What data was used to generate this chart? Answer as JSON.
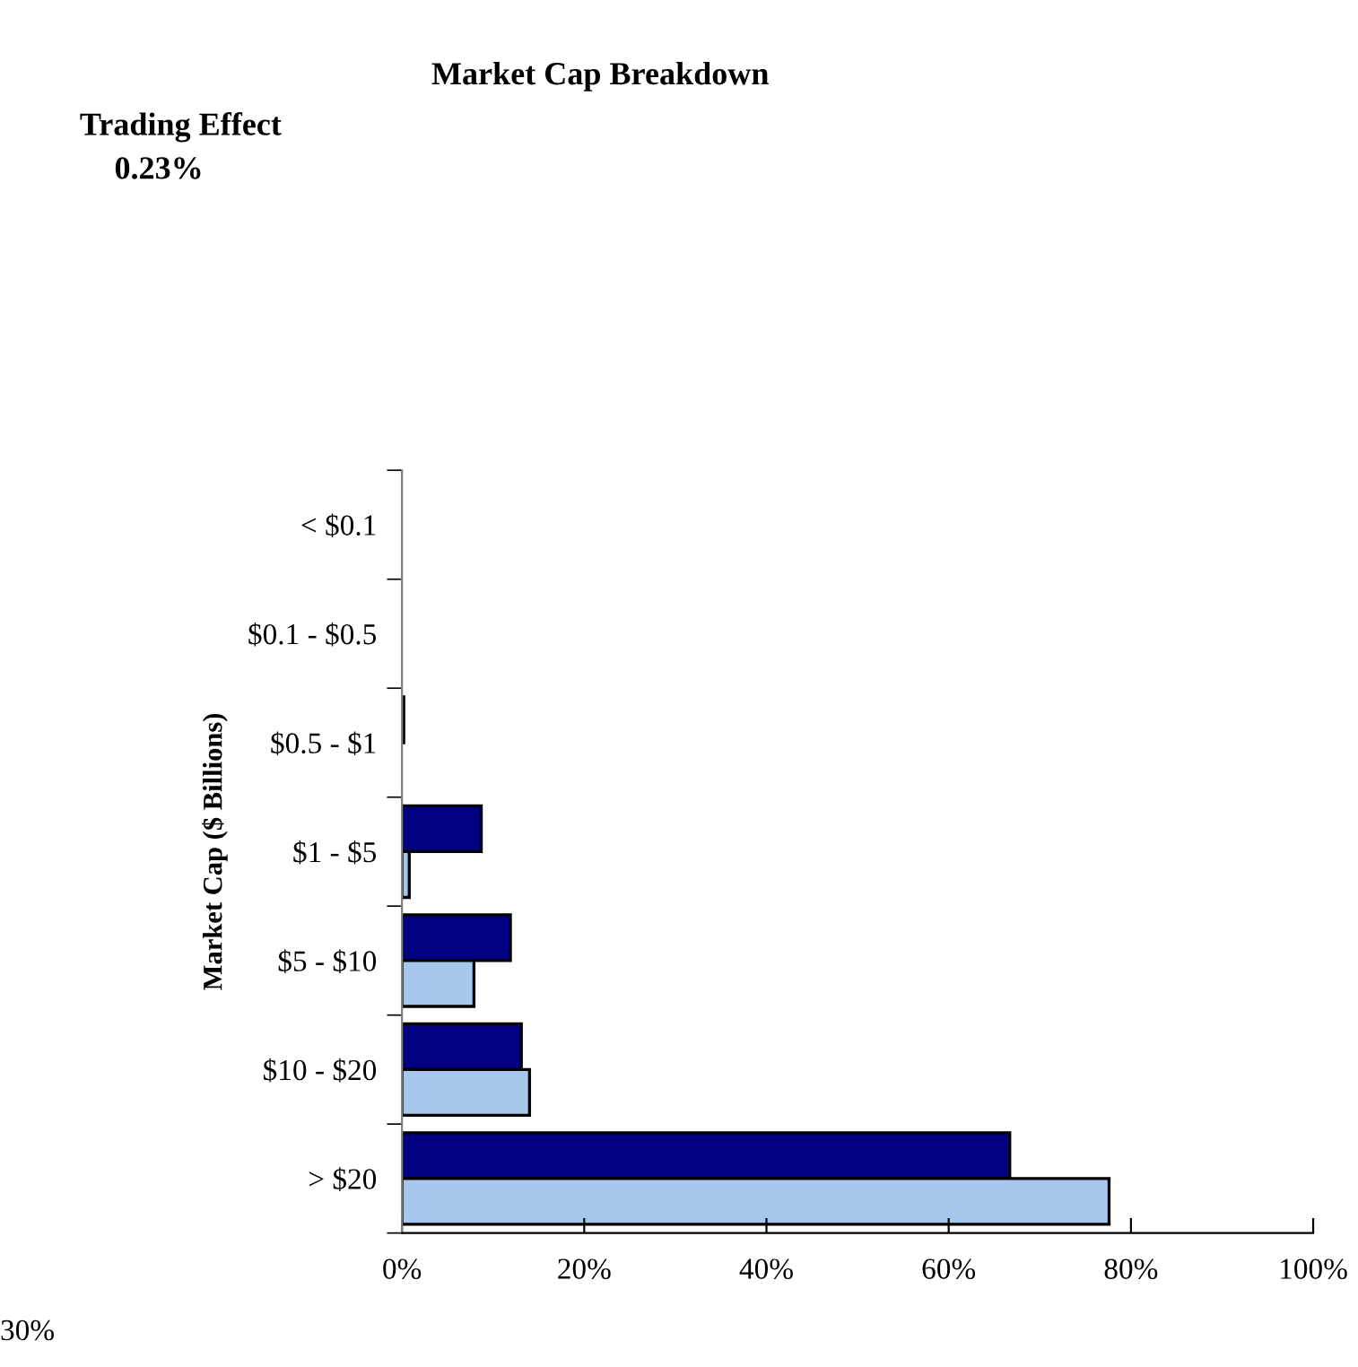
{
  "chart_data": {
    "type": "bar",
    "orientation": "horizontal",
    "title": "Market Cap Breakdown",
    "ylabel": "Market Cap ($ Billions)",
    "categories": [
      "< $0.1",
      "$0.1 - $0.5",
      "$0.5 - $1",
      "$1 - $5",
      "$5 - $10",
      "$10 - $20",
      "> $20"
    ],
    "series": [
      {
        "color": "#000080",
        "values": [
          0,
          0,
          0.2,
          8.7,
          11.9,
          13.1,
          66.7
        ]
      },
      {
        "color": "#a6c8ec",
        "values": [
          0,
          0,
          0,
          0.8,
          7.9,
          14.0,
          77.6
        ]
      }
    ],
    "xlim": [
      0,
      100
    ],
    "xticks": [
      {
        "value": 0,
        "label": "0%"
      },
      {
        "value": 20,
        "label": "20%"
      },
      {
        "value": 40,
        "label": "40%"
      },
      {
        "value": 60,
        "label": "60%"
      },
      {
        "value": 80,
        "label": "80%"
      },
      {
        "value": 100,
        "label": "100%"
      }
    ],
    "annotations": [
      "Trading Effect",
      "0.23%",
      "30%"
    ],
    "grid": false,
    "legend": false
  }
}
